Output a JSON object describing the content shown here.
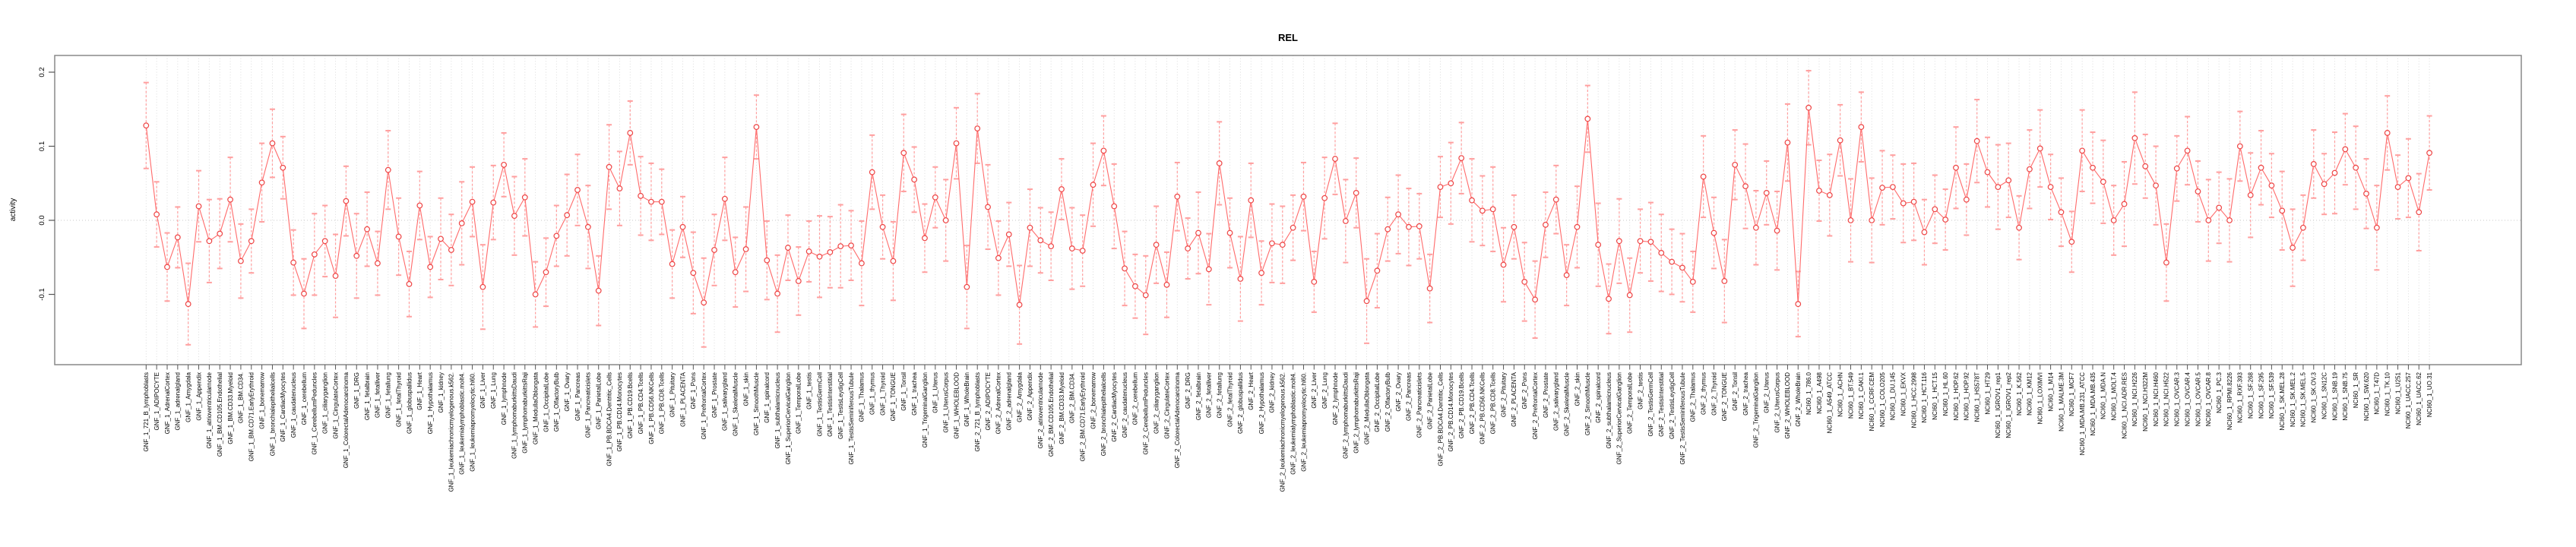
{
  "chart_data": {
    "type": "line",
    "title": "REL",
    "ylabel": "activity",
    "xlabel": "",
    "marker": "open-circle",
    "error_bars": true,
    "legend": "none",
    "grid": "vertical dotted gridline per category, dotted horizontal line at 0",
    "ylim": [
      -0.19,
      0.215
    ],
    "yticks": [
      0.2,
      0.1,
      0.0,
      -0.1
    ],
    "ytick_labels": [
      "0.2",
      "0.1",
      "0.0",
      "-0.1"
    ],
    "colors": {
      "point": "#ee4444",
      "line": "#ff6b6b",
      "error_bar": "#ff9f9f",
      "frame": "#888888",
      "grid": "#d8d8d8",
      "zero_line": "#c9c9c9",
      "tick": "#555555",
      "title": "#000000"
    },
    "categories": [
      "GNF_1_721_B_lymphoblasts",
      "GNF_1_ADIPOCYTE",
      "GNF_1_AdrenalCortex",
      "GNF_1_adrenalgland",
      "GNF_1_Amygdala",
      "GNF_1_Appendix",
      "GNF_1_atrioventricularnode",
      "GNF_1_BM.CD105.Endothelial",
      "GNF_1_BM.CD33.Myeloid",
      "GNF_1_BM.CD34.",
      "GNF_1_BM.CD71.EarlyErythroid",
      "GNF_1_bonemarrow",
      "GNF_1_bronchialepithelialcells",
      "GNF_1_CardiacMyocytes",
      "GNF_1_caudatenucleus",
      "GNF_1_cerebellum",
      "GNF_1_CerebellumPeduncles",
      "GNF_1_ciliaryganglion",
      "GNF_1_CingulateCortex",
      "GNF_1_ColorectalAdenocarcinoma",
      "GNF_1_DRG",
      "GNF_1_fetalbrain",
      "GNF_1_fetalliver",
      "GNF_1_fetallung",
      "GNF_1_fetalThyroid",
      "GNF_1_globuspallidus",
      "GNF_1_Heart",
      "GNF_1_Hypothalamus",
      "GNF_1_kidney",
      "GNF_1_leukemiachronicmyelogenous.k562.",
      "GNF_1_leukemialymphoblastic.molt4.",
      "GNF_1_leukemiapromyelocytic.hl60.",
      "GNF_1_Liver",
      "GNF_1_Lung",
      "GNF_1_lymphnode",
      "GNF_1_lymphomaburkittsDaudi",
      "GNF_1_lymphomaburkittsRaji",
      "GNF_1_MedullaOblongata",
      "GNF_1_OccipitalLobe",
      "GNF_1_OlfactoryBulb",
      "GNF_1_Ovary",
      "GNF_1_Pancreas",
      "GNF_1_Pancreaticislets",
      "GNF_1_ParietalLobe",
      "GNF_1_PB.BDCA4.Dentritic_Cells",
      "GNF_1_PB.CD14.Monocytes",
      "GNF_1_PB.CD19.Bcells",
      "GNF_1_PB.CD4.Tcells",
      "GNF_1_PB.CD56.NKCells",
      "GNF_1_PB.CD8.Tcells",
      "GNF_1_Pituitary",
      "GNF_1_PLACENTA",
      "GNF_1_Pons",
      "GNF_1_PrefrontalCortex",
      "GNF_1_Prostate",
      "GNF_1_salivarygland",
      "GNF_1_SkeletalMuscle",
      "GNF_1_skin",
      "GNF_1_SmoothMuscle",
      "GNF_1_spinalcord",
      "GNF_1_subthalamicnucleus",
      "GNF_1_SuperiorCervicalGanglion",
      "GNF_1_TemporalLobe",
      "GNF_1_testis",
      "GNF_1_TestisGermCell",
      "GNF_1_TestisInterstitial",
      "GNF_1_TestisLeydigCell",
      "GNF_1_TestisSeminiferousTubule",
      "GNF_1_Thalamus",
      "GNF_1_thymus",
      "GNF_1_Thyroid",
      "GNF_1_TONGUE",
      "GNF_1_Tonsil",
      "GNF_1_trachea",
      "GNF_1_TrigeminalGanglion",
      "GNF_1_Uterus",
      "GNF_1_UterusCorpus",
      "GNF_1_WHOLEBLOOD",
      "GNF_1_WholeBrain",
      "GNF_2_721_B_lymphoblasts",
      "GNF_2_ADIPOCYTE",
      "GNF_2_AdrenalCortex",
      "GNF_2_adrenalgland",
      "GNF_2_Amygdala",
      "GNF_2_Appendix",
      "GNF_2_atrioventricularnode",
      "GNF_2_BM.CD105.Endothelial",
      "GNF_2_BM.CD33.Myeloid",
      "GNF_2_BM.CD34.",
      "GNF_2_BM.CD71.EarlyErythroid",
      "GNF_2_bonemarrow",
      "GNF_2_bronchialepithelialcells",
      "GNF_2_CardiacMyocytes",
      "GNF_2_caudatenucleus",
      "GNF_2_cerebellum",
      "GNF_2_CerebellumPeduncles",
      "GNF_2_ciliaryganglion",
      "GNF_2_CingulateCortex",
      "GNF_2_ColorectalAdenocarcinoma",
      "GNF_2_DRG",
      "GNF_2_fetalbrain",
      "GNF_2_fetalliver",
      "GNF_2_fetallung",
      "GNF_2_fetalThyroid",
      "GNF_2_globuspallidus",
      "GNF_2_Heart",
      "GNF_2_Hypothalamus",
      "GNF_2_kidney",
      "GNF_2_leukemiachronicmyelogenous.k562.",
      "GNF_2_leukemialymphoblastic.molt4.",
      "GNF_2_leukemiapromyelocytic.hl60.",
      "GNF_2_Liver",
      "GNF_2_Lung",
      "GNF_2_lymphnode",
      "GNF_2_lymphomaburkittsDaudi",
      "GNF_2_lymphomaburkittsRaji",
      "GNF_2_MedullaOblongata",
      "GNF_2_OccipitalLobe",
      "GNF_2_OlfactoryBulb",
      "GNF_2_Ovary",
      "GNF_2_Pancreas",
      "GNF_2_Pancreaticislets",
      "GNF_2_ParietalLobe",
      "GNF_2_PB.BDCA4.Dentritic_Cells",
      "GNF_2_PB.CD14.Monocytes",
      "GNF_2_PB.CD19.Bcells",
      "GNF_2_PB.CD4.Tcells",
      "GNF_2_PB.CD56.NKCells",
      "GNF_2_PB.CD8.Tcells",
      "GNF_2_Pituitary",
      "GNF_2_PLACENTA",
      "GNF_2_Pons",
      "GNF_2_PrefrontalCortex",
      "GNF_2_Prostate",
      "GNF_2_salivarygland",
      "GNF_2_SkeletalMuscle",
      "GNF_2_skin",
      "GNF_2_SmoothMuscle",
      "GNF_2_spinalcord",
      "GNF_2_subthalamicnucleus",
      "GNF_2_SuperiorCervicalGanglion",
      "GNF_2_TemporalLobe",
      "GNF_2_testis",
      "GNF_2_TestisGermCell",
      "GNF_2_TestisInterstitial",
      "GNF_2_TestisLeydigCell",
      "GNF_2_TestisSeminiferousTubule",
      "GNF_2_Thalamus",
      "GNF_2_thymus",
      "GNF_2_Thyroid",
      "GNF_2_TONGUE",
      "GNF_2_Tonsil",
      "GNF_2_trachea",
      "GNF_2_TrigeminalGanglion",
      "GNF_2_Uterus",
      "GNF_2_UterusCorpus",
      "GNF_2_WHOLEBLOOD",
      "GNF_2_WholeBrain",
      "NCI60_1_786.0",
      "NCI60_1_A498",
      "NCI60_1_A549_ATCC",
      "NCI60_1_ACHN",
      "NCI60_1_BT.549",
      "NCI60_1_CAKI.1",
      "NCI60_1_CCRF.CEM",
      "NCI60_1_COLO205",
      "NCI60_1_DU.145",
      "NCI60_1_EKVX",
      "NCI60_1_HCC.2998",
      "NCI60_1_HCT.116",
      "NCI60_1_HCT.15",
      "NCI60_1_HL.60",
      "NCI60_1_HOP.62",
      "NCI60_1_HOP.92",
      "NCI60_1_HS578T",
      "NCI60_1_HT29",
      "NCI60_1_IGROV1_rep1",
      "NCI60_1_IGROV1_rep2",
      "NCI60_1_K.562",
      "NCI60_1_KM12",
      "NCI60_1_LOXIMVI",
      "NCI60_1_M14",
      "NCI60_1_MALME.3M",
      "NCI60_1_MCF7",
      "NCI60_1_MDA.MB.231_ATCC",
      "NCI60_1_MDA.MB.435",
      "NCI60_1_MDA.N",
      "NCI60_1_MOLT.4",
      "NCI60_1_NCI.ADR.RES",
      "NCI60_1_NCI.H226",
      "NCI60_1_NCI.H322M",
      "NCI60_1_NCI.H460",
      "NCI60_1_NCI.H522",
      "NCI60_1_OVCAR.3",
      "NCI60_1_OVCAR.4",
      "NCI60_1_OVCAR.5",
      "NCI60_1_OVCAR.8",
      "NCI60_1_PC.3",
      "NCI60_1_RPMI.8226",
      "NCI60_1_RXF.393",
      "NCI60_1_SF.268",
      "NCI60_1_SF.295",
      "NCI60_1_SF.539",
      "NCI60_1_SK.MEL.28",
      "NCI60_1_SK.MEL.2",
      "NCI60_1_SK.MEL.5",
      "NCI60_1_SK.OV.3",
      "NCI60_1_SN12C",
      "NCI60_1_SNB.19",
      "NCI60_1_SNB.75",
      "NCI60_1_SR",
      "NCI60_1_SW.620",
      "NCI60_1_T47D",
      "NCI60_1_TK.10",
      "NCI60_1_U251",
      "NCI60_1_UACC.257",
      "NCI60_1_UACC.62",
      "NCI60_1_UO.31"
    ],
    "series": [
      {
        "name": "activity",
        "values": [
          0.128,
          0.008,
          -0.063,
          -0.023,
          -0.113,
          0.019,
          -0.028,
          -0.018,
          0.028,
          -0.055,
          -0.028,
          0.051,
          0.104,
          0.071,
          -0.057,
          -0.099,
          -0.046,
          -0.028,
          -0.075,
          0.026,
          -0.048,
          -0.012,
          -0.058,
          0.068,
          -0.022,
          -0.086,
          0.02,
          -0.063,
          -0.025,
          -0.04,
          -0.004,
          0.025,
          -0.09,
          0.024,
          0.075,
          0.006,
          0.031,
          -0.1,
          -0.07,
          -0.021,
          0.007,
          0.041,
          -0.009,
          -0.095,
          0.072,
          0.043,
          0.118,
          0.033,
          0.025,
          0.025,
          -0.059,
          -0.009,
          -0.071,
          -0.111,
          -0.04,
          0.029,
          -0.07,
          -0.039,
          0.126,
          -0.054,
          -0.099,
          -0.037,
          -0.082,
          -0.042,
          -0.049,
          -0.043,
          -0.035,
          -0.034,
          -0.058,
          0.065,
          -0.009,
          -0.055,
          0.091,
          0.055,
          -0.024,
          0.031,
          0.0,
          0.104,
          -0.09,
          0.124,
          0.018,
          -0.051,
          -0.019,
          -0.114,
          -0.01,
          -0.027,
          -0.035,
          0.042,
          -0.038,
          -0.041,
          0.048,
          0.094,
          0.019,
          -0.065,
          -0.089,
          -0.101,
          -0.033,
          -0.087,
          0.032,
          -0.038,
          -0.017,
          -0.066,
          0.077,
          -0.017,
          -0.079,
          0.027,
          -0.071,
          -0.031,
          -0.033,
          -0.01,
          0.032,
          -0.083,
          0.03,
          0.083,
          -0.001,
          0.037,
          -0.109,
          -0.068,
          -0.012,
          0.008,
          -0.009,
          -0.008,
          -0.092,
          0.045,
          0.05,
          0.084,
          0.027,
          0.013,
          0.015,
          -0.06,
          -0.009,
          -0.083,
          -0.107,
          -0.006,
          0.028,
          -0.074,
          -0.009,
          0.137,
          -0.033,
          -0.106,
          -0.028,
          -0.101,
          -0.028,
          -0.029,
          -0.044,
          -0.056,
          -0.064,
          -0.083,
          0.059,
          -0.017,
          -0.082,
          0.075,
          0.046,
          -0.01,
          0.037,
          -0.014,
          0.105,
          -0.113,
          0.152,
          0.04,
          0.034,
          0.108,
          0.0,
          0.126,
          0.0,
          0.044,
          0.045,
          0.023,
          0.025,
          -0.016,
          0.015,
          0.001,
          0.071,
          0.028,
          0.107,
          0.065,
          0.045,
          0.054,
          -0.01,
          0.069,
          0.097,
          0.045,
          0.011,
          -0.029,
          0.094,
          0.071,
          0.052,
          0.0,
          0.022,
          0.111,
          0.073,
          0.047,
          -0.057,
          0.07,
          0.094,
          0.039,
          0.0,
          0.017,
          0.0,
          0.1,
          0.034,
          0.071,
          0.047,
          0.013,
          -0.037,
          -0.01,
          0.076,
          0.049,
          0.064,
          0.096,
          0.071,
          0.036,
          -0.01,
          0.118,
          0.045,
          0.057,
          0.011,
          0.091
        ],
        "errors": [
          0.058,
          0.044,
          0.046,
          0.041,
          0.055,
          0.048,
          0.056,
          0.047,
          0.057,
          0.05,
          0.043,
          0.053,
          0.046,
          0.042,
          0.044,
          0.047,
          0.055,
          0.048,
          0.056,
          0.047,
          0.057,
          0.05,
          0.043,
          0.053,
          0.052,
          0.044,
          0.046,
          0.041,
          0.055,
          0.048,
          0.056,
          0.047,
          0.057,
          0.05,
          0.043,
          0.053,
          0.052,
          0.044,
          0.046,
          0.041,
          0.055,
          0.048,
          0.056,
          0.047,
          0.057,
          0.05,
          0.043,
          0.053,
          0.052,
          0.044,
          0.046,
          0.041,
          0.055,
          0.06,
          0.048,
          0.056,
          0.047,
          0.057,
          0.043,
          0.053,
          0.052,
          0.044,
          0.046,
          0.041,
          0.055,
          0.048,
          0.056,
          0.047,
          0.057,
          0.05,
          0.043,
          0.053,
          0.052,
          0.044,
          0.046,
          0.041,
          0.055,
          0.048,
          0.056,
          0.047,
          0.057,
          0.05,
          0.043,
          0.053,
          0.052,
          0.044,
          0.046,
          0.041,
          0.055,
          0.048,
          0.056,
          0.047,
          0.057,
          0.05,
          0.043,
          0.053,
          0.052,
          0.044,
          0.046,
          0.041,
          0.055,
          0.048,
          0.056,
          0.047,
          0.057,
          0.05,
          0.043,
          0.053,
          0.052,
          0.044,
          0.046,
          0.041,
          0.055,
          0.048,
          0.056,
          0.047,
          0.057,
          0.05,
          0.043,
          0.053,
          0.052,
          0.044,
          0.046,
          0.041,
          0.055,
          0.048,
          0.056,
          0.047,
          0.057,
          0.05,
          0.043,
          0.053,
          0.052,
          0.044,
          0.046,
          0.041,
          0.055,
          0.045,
          0.056,
          0.047,
          0.057,
          0.05,
          0.043,
          0.053,
          0.052,
          0.044,
          0.046,
          0.041,
          0.055,
          0.048,
          0.056,
          0.047,
          0.057,
          0.05,
          0.043,
          0.053,
          0.052,
          0.044,
          0.05,
          0.041,
          0.055,
          0.048,
          0.056,
          0.047,
          0.057,
          0.05,
          0.043,
          0.053,
          0.052,
          0.044,
          0.046,
          0.041,
          0.055,
          0.048,
          0.056,
          0.047,
          0.057,
          0.05,
          0.043,
          0.053,
          0.052,
          0.044,
          0.046,
          0.041,
          0.055,
          0.048,
          0.056,
          0.047,
          0.057,
          0.062,
          0.043,
          0.053,
          0.052,
          0.044,
          0.046,
          0.041,
          0.055,
          0.048,
          0.056,
          0.047,
          0.057,
          0.05,
          0.043,
          0.053,
          0.052,
          0.044,
          0.046,
          0.041,
          0.055,
          0.048,
          0.056,
          0.047,
          0.057,
          0.05,
          0.043,
          0.053,
          0.052,
          0.05
        ]
      }
    ]
  }
}
